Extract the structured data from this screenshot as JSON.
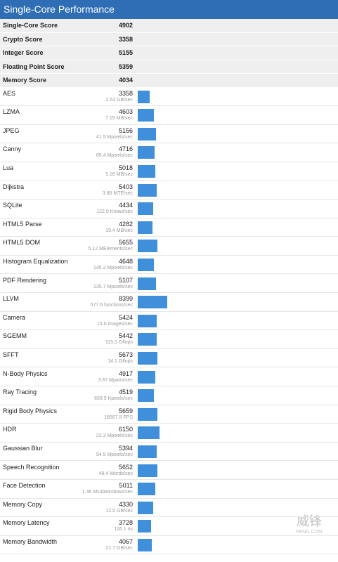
{
  "header": {
    "title": "Single-Core Performance"
  },
  "summary": [
    {
      "label": "Single-Core Score",
      "score": 4902
    },
    {
      "label": "Crypto Score",
      "score": 3358
    },
    {
      "label": "Integer Score",
      "score": 5155
    },
    {
      "label": "Floating Point Score",
      "score": 5359
    },
    {
      "label": "Memory Score",
      "score": 4034
    }
  ],
  "tests": [
    {
      "name": "AES",
      "score": 3358,
      "detail": "2.53 GB/sec"
    },
    {
      "name": "LZMA",
      "score": 4603,
      "detail": "7.19 MB/sec"
    },
    {
      "name": "JPEG",
      "score": 5156,
      "detail": "41.5 Mpixels/sec"
    },
    {
      "name": "Canny",
      "score": 4716,
      "detail": "65.4 Mpixels/sec"
    },
    {
      "name": "Lua",
      "score": 5018,
      "detail": "5.16 MB/sec"
    },
    {
      "name": "Dijkstra",
      "score": 5403,
      "detail": "3.66 MTE/sec"
    },
    {
      "name": "SQLite",
      "score": 4434,
      "detail": "122.9 Krows/sec"
    },
    {
      "name": "HTML5 Parse",
      "score": 4282,
      "detail": "19.4 MB/sec"
    },
    {
      "name": "HTML5 DOM",
      "score": 5655,
      "detail": "5.12 MElements/sec"
    },
    {
      "name": "Histogram Equalization",
      "score": 4648,
      "detail": "145.2 Mpixels/sec"
    },
    {
      "name": "PDF Rendering",
      "score": 5107,
      "detail": "135.7 Mpixels/sec"
    },
    {
      "name": "LLVM",
      "score": 8399,
      "detail": "577.5 functions/sec"
    },
    {
      "name": "Camera",
      "score": 5424,
      "detail": "15.0 images/sec"
    },
    {
      "name": "SGEMM",
      "score": 5442,
      "detail": "115.0 Gflops"
    },
    {
      "name": "SFFT",
      "score": 5673,
      "detail": "14.1 Gflops"
    },
    {
      "name": "N-Body Physics",
      "score": 4917,
      "detail": "3.67 Mpairs/sec"
    },
    {
      "name": "Ray Tracing",
      "score": 4519,
      "detail": "659.9 Kpixels/sec"
    },
    {
      "name": "Rigid Body Physics",
      "score": 5659,
      "detail": "16567.5 FPS"
    },
    {
      "name": "HDR",
      "score": 6150,
      "detail": "22.3 Mpixels/sec"
    },
    {
      "name": "Gaussian Blur",
      "score": 5394,
      "detail": "94.5 Mpixels/sec"
    },
    {
      "name": "Speech Recognition",
      "score": 5652,
      "detail": "48.4 Words/sec"
    },
    {
      "name": "Face Detection",
      "score": 5011,
      "detail": "1.46 Msubwindows/sec"
    },
    {
      "name": "Memory Copy",
      "score": 4330,
      "detail": "12.0 GB/sec"
    },
    {
      "name": "Memory Latency",
      "score": 3728,
      "detail": "116.1 ns"
    },
    {
      "name": "Memory Bandwidth",
      "score": 4067,
      "detail": "21.7 GB/sec"
    }
  ],
  "watermark": {
    "text": "威锋",
    "sub": "FENG.COM"
  }
}
